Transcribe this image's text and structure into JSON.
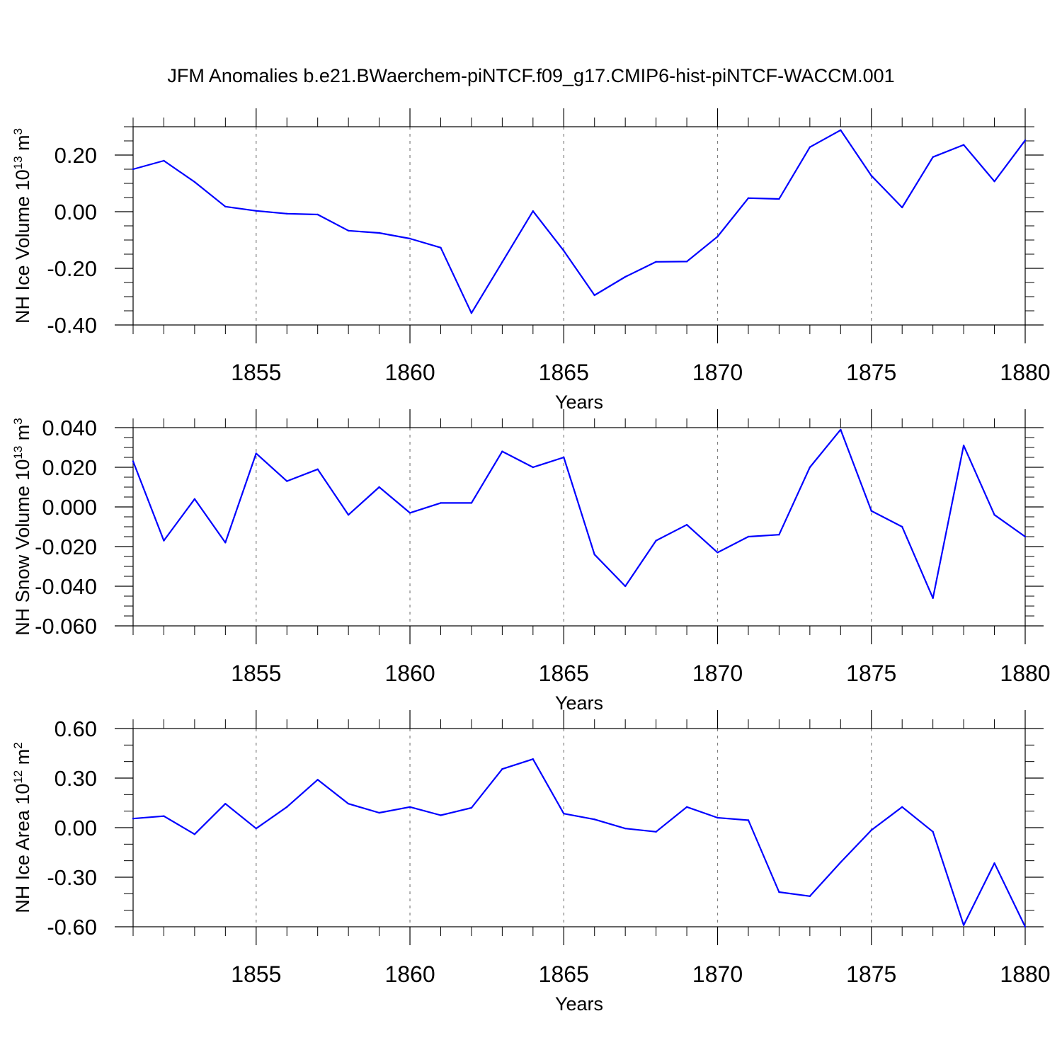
{
  "title": "JFM Anomalies b.e21.BWaerchem-piNTCF.f09_g17.CMIP6-hist-piNTCF-WACCM.001",
  "colors": {
    "line": "#0000ff",
    "axis": "#000000",
    "grid": "#808080",
    "background": "#ffffff"
  },
  "chart_data": [
    {
      "type": "line",
      "ylabel": "NH Ice Volume 10",
      "ylabel_exp": "13",
      "ylabel_unit": " m",
      "ylabel_unit_exp": "3",
      "xlabel": "Years",
      "xlim": [
        1851,
        1880
      ],
      "ylim": [
        -0.4,
        0.3
      ],
      "xticks": [
        1855,
        1860,
        1865,
        1870,
        1875,
        1880
      ],
      "xtick_labels": [
        "1855",
        "1860",
        "1865",
        "1870",
        "1875",
        "1880"
      ],
      "yticks": [
        -0.4,
        -0.2,
        0.0,
        0.2
      ],
      "ytick_labels": [
        "-0.40",
        "-0.20",
        "0.00",
        "0.20"
      ],
      "yminor_step": 0.05,
      "vertical_grid": true,
      "x": [
        1851,
        1852,
        1853,
        1854,
        1855,
        1856,
        1857,
        1858,
        1859,
        1860,
        1861,
        1862,
        1863,
        1864,
        1865,
        1866,
        1867,
        1868,
        1869,
        1870,
        1871,
        1872,
        1873,
        1874,
        1875,
        1876,
        1877,
        1878,
        1879,
        1880
      ],
      "series": [
        {
          "name": "NH Ice Volume",
          "values": [
            0.15,
            0.18,
            0.105,
            0.018,
            0.003,
            -0.007,
            -0.01,
            -0.067,
            -0.075,
            -0.095,
            -0.127,
            -0.358,
            -0.178,
            0.002,
            -0.138,
            -0.295,
            -0.23,
            -0.177,
            -0.176,
            -0.088,
            0.048,
            0.045,
            0.228,
            0.288,
            0.127,
            0.015,
            0.193,
            0.236,
            0.107,
            0.252
          ]
        }
      ]
    },
    {
      "type": "line",
      "ylabel": "NH Snow Volume 10",
      "ylabel_exp": "13",
      "ylabel_unit": " m",
      "ylabel_unit_exp": "3",
      "xlabel": "Years",
      "xlim": [
        1851,
        1880
      ],
      "ylim": [
        -0.06,
        0.04
      ],
      "xticks": [
        1855,
        1860,
        1865,
        1870,
        1875,
        1880
      ],
      "xtick_labels": [
        "1855",
        "1860",
        "1865",
        "1870",
        "1875",
        "1880"
      ],
      "yticks": [
        -0.06,
        -0.04,
        -0.02,
        0.0,
        0.02,
        0.04
      ],
      "ytick_labels": [
        "-0.060",
        "-0.040",
        "-0.020",
        "0.000",
        "0.020",
        "0.040"
      ],
      "yminor_step": 0.005,
      "vertical_grid": true,
      "x": [
        1851,
        1852,
        1853,
        1854,
        1855,
        1856,
        1857,
        1858,
        1859,
        1860,
        1861,
        1862,
        1863,
        1864,
        1865,
        1866,
        1867,
        1868,
        1869,
        1870,
        1871,
        1872,
        1873,
        1874,
        1875,
        1876,
        1877,
        1878,
        1879,
        1880
      ],
      "series": [
        {
          "name": "NH Snow Volume",
          "values": [
            0.023,
            -0.017,
            0.004,
            -0.018,
            0.027,
            0.013,
            0.019,
            -0.004,
            0.01,
            -0.003,
            0.002,
            0.002,
            0.028,
            0.02,
            0.025,
            -0.024,
            -0.04,
            -0.017,
            -0.009,
            -0.023,
            -0.015,
            -0.014,
            0.02,
            0.039,
            -0.002,
            -0.01,
            -0.046,
            0.031,
            -0.004,
            -0.015
          ]
        }
      ]
    },
    {
      "type": "line",
      "ylabel": "NH Ice Area 10",
      "ylabel_exp": "12",
      "ylabel_unit": " m",
      "ylabel_unit_exp": "2",
      "xlabel": "Years",
      "xlim": [
        1851,
        1880
      ],
      "ylim": [
        -0.6,
        0.6
      ],
      "xticks": [
        1855,
        1860,
        1865,
        1870,
        1875,
        1880
      ],
      "xtick_labels": [
        "1855",
        "1860",
        "1865",
        "1870",
        "1875",
        "1880"
      ],
      "yticks": [
        -0.6,
        -0.3,
        0.0,
        0.3,
        0.6
      ],
      "ytick_labels": [
        "-0.60",
        "-0.30",
        "0.00",
        "0.30",
        "0.60"
      ],
      "yminor_step": 0.1,
      "vertical_grid": true,
      "x": [
        1851,
        1852,
        1853,
        1854,
        1855,
        1856,
        1857,
        1858,
        1859,
        1860,
        1861,
        1862,
        1863,
        1864,
        1865,
        1866,
        1867,
        1868,
        1869,
        1870,
        1871,
        1872,
        1873,
        1874,
        1875,
        1876,
        1877,
        1878,
        1879,
        1880
      ],
      "series": [
        {
          "name": "NH Ice Area",
          "values": [
            0.055,
            0.07,
            -0.04,
            0.145,
            -0.005,
            0.125,
            0.29,
            0.145,
            0.09,
            0.125,
            0.075,
            0.12,
            0.355,
            0.415,
            0.085,
            0.05,
            -0.005,
            -0.025,
            0.125,
            0.06,
            0.045,
            -0.39,
            -0.415,
            -0.21,
            -0.015,
            0.125,
            -0.025,
            -0.59,
            -0.215,
            -0.6
          ]
        }
      ]
    }
  ]
}
